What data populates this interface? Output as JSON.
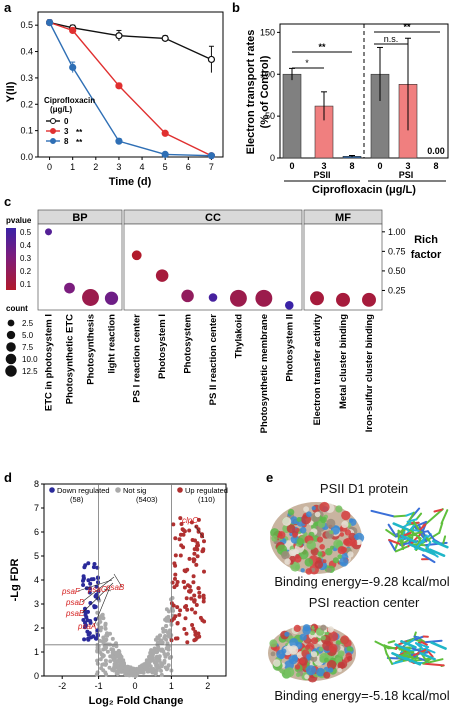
{
  "panels": {
    "a": {
      "label": "a",
      "ylabel": "Y(II)",
      "xlabel": "Time (d)",
      "legend_title_1": "Ciprofloxacin",
      "legend_title_2": "(μg/L)",
      "legend": [
        {
          "name": "0",
          "sig": "",
          "color": "#111111"
        },
        {
          "name": "3",
          "sig": "**",
          "color": "#e03030"
        },
        {
          "name": "8",
          "sig": "**",
          "color": "#2f6fb5"
        }
      ]
    },
    "b": {
      "label": "b",
      "ylabel_1": "Electron transport rates",
      "ylabel_2": "(% of Control)",
      "xlabel": "Ciprofloxacin (μg/L)",
      "group_labels": [
        "PSII",
        "PSI"
      ],
      "sig_labels": [
        "*",
        "**",
        "n.s.",
        "**"
      ],
      "zero_label": "0.00"
    },
    "c": {
      "label": "c",
      "facets": [
        "BP",
        "CC",
        "MF"
      ],
      "pvalue_title": "pvalue",
      "pvalue_ticks": [
        "0.5",
        "0.4",
        "0.3",
        "0.2",
        "0.1"
      ],
      "count_title": "count",
      "count_ticks": [
        "2.5",
        "5.0",
        "7.5",
        "10.0",
        "12.5"
      ],
      "right_title_1": "Rich",
      "right_title_2": "factor",
      "right_ticks": [
        "1.00",
        "0.75",
        "0.50",
        "0.25"
      ]
    },
    "d": {
      "label": "d",
      "ylabel": "-Lg FDR",
      "xlabel": "Log₂ Fold Change",
      "legend": [
        {
          "name": "Down regulated",
          "count": "(58)",
          "color": "#2a2a9a"
        },
        {
          "name": "Not sig",
          "count": "(5403)",
          "color": "#aaaaaa"
        },
        {
          "name": "Up regulated",
          "count": "(110)",
          "color": "#b03030"
        }
      ],
      "genes_down": [
        "psaF",
        "psaD",
        "psaE",
        "psaA",
        "psaC",
        "psaB"
      ],
      "gene_up": "clpC"
    },
    "e": {
      "label": "e",
      "title_1": "PSII D1 protein",
      "energy_1": "Binding energy=-9.28 kcal/mol",
      "title_2": "PSI reaction center",
      "energy_2": "Binding energy=-5.18 kcal/mol"
    }
  },
  "chart_data": [
    {
      "type": "line",
      "panel": "a",
      "x": [
        0,
        1,
        2,
        3,
        4,
        5,
        6,
        7
      ],
      "xlim": [
        -0.5,
        7.5
      ],
      "ylim": [
        0,
        0.55
      ],
      "yticks": [
        0.0,
        0.1,
        0.2,
        0.3,
        0.4,
        0.5
      ],
      "series": [
        {
          "name": "0",
          "x": [
            0,
            1,
            3,
            5,
            7
          ],
          "y": [
            0.51,
            0.49,
            0.46,
            0.45,
            0.37
          ],
          "err": [
            0.01,
            0.01,
            0.02,
            0.01,
            0.05
          ]
        },
        {
          "name": "3",
          "x": [
            0,
            1,
            3,
            5,
            7
          ],
          "y": [
            0.51,
            0.48,
            0.27,
            0.09,
            0.005
          ],
          "err": [
            0.01,
            0.01,
            0.01,
            0.005,
            0.003
          ]
        },
        {
          "name": "8",
          "x": [
            0,
            1,
            3,
            5,
            7
          ],
          "y": [
            0.51,
            0.34,
            0.06,
            0.01,
            0.005
          ],
          "err": [
            0.01,
            0.02,
            0.01,
            0.005,
            0.003
          ]
        }
      ]
    },
    {
      "type": "bar",
      "panel": "b",
      "categories": [
        "0",
        "3",
        "8",
        "0",
        "3",
        "8"
      ],
      "groups": [
        "PSII",
        "PSII",
        "PSII",
        "PSI",
        "PSI",
        "PSI"
      ],
      "values": [
        100,
        62,
        2,
        100,
        88,
        0
      ],
      "errors": [
        7,
        17,
        1,
        32,
        55,
        0
      ],
      "colors": [
        "#808080",
        "#f07f7f",
        "#2f6fb5",
        "#808080",
        "#f07f7f",
        "#2f6fb5"
      ],
      "ylim": [
        0,
        160
      ],
      "yticks": [
        0,
        50,
        100,
        150
      ]
    },
    {
      "type": "scatter",
      "panel": "c",
      "facets": [
        "BP",
        "CC",
        "MF"
      ],
      "ylim": [
        0,
        1.1
      ],
      "points": [
        {
          "facet": "BP",
          "term": "ETC in photosystem I",
          "rich": 1.0,
          "count": 1,
          "p": 0.5
        },
        {
          "facet": "BP",
          "term": "Photosynthetic ETC",
          "rich": 0.28,
          "count": 4,
          "p": 0.35
        },
        {
          "facet": "BP",
          "term": "Photosynthesis",
          "rich": 0.16,
          "count": 13,
          "p": 0.2
        },
        {
          "facet": "BP",
          "term": "light reaction",
          "rich": 0.15,
          "count": 7,
          "p": 0.4
        },
        {
          "facet": "CC",
          "term": "PS I reaction center",
          "rich": 0.7,
          "count": 3,
          "p": 0.1
        },
        {
          "facet": "CC",
          "term": "Photosystem I",
          "rich": 0.44,
          "count": 6,
          "p": 0.15
        },
        {
          "facet": "CC",
          "term": "Photosystem",
          "rich": 0.18,
          "count": 6,
          "p": 0.25
        },
        {
          "facet": "CC",
          "term": "PS II reaction center",
          "rich": 0.16,
          "count": 2,
          "p": 0.55
        },
        {
          "facet": "CC",
          "term": "Thylakoid",
          "rich": 0.15,
          "count": 13,
          "p": 0.2
        },
        {
          "facet": "CC",
          "term": "Photosynthetic membrane",
          "rich": 0.15,
          "count": 13,
          "p": 0.2
        },
        {
          "facet": "CC",
          "term": "Photosystem II",
          "rich": 0.06,
          "count": 2,
          "p": 0.6
        },
        {
          "facet": "MF",
          "term": "Electron transfer activity",
          "rich": 0.15,
          "count": 8,
          "p": 0.15
        },
        {
          "facet": "MF",
          "term": "Metal cluster binding",
          "rich": 0.13,
          "count": 8,
          "p": 0.15
        },
        {
          "facet": "MF",
          "term": "Iron-sulfur cluster binding",
          "rich": 0.13,
          "count": 8,
          "p": 0.15
        }
      ]
    },
    {
      "type": "scatter",
      "panel": "d",
      "xlim": [
        -2.5,
        2.5
      ],
      "ylim": [
        0,
        8
      ],
      "xticks": [
        -2,
        -1,
        0,
        1,
        2
      ],
      "yticks": [
        0,
        1,
        2,
        3,
        4,
        5,
        6,
        7,
        8
      ],
      "fc_threshold": 1,
      "fdr_threshold": 1.3
    }
  ]
}
